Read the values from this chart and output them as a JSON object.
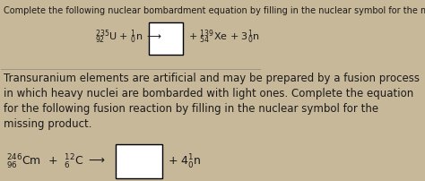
{
  "bg_color": "#c8b89a",
  "title_text": "Complete the following nuclear bombardment equation by filling in the nuclear symbol for the missing species.",
  "title_fontsize": 7,
  "para_fontsize": 8.5,
  "paragraph": "Transuranium elements are artificial and may be prepared by a fusion process\nin which heavy nuclei are bombarded with light ones. Complete the equation\nfor the following fusion reaction by filling in the nuclear symbol for the\nmissing product.",
  "eq_fontsize": 8,
  "box_color": "#ffffff",
  "text_color": "#1a1a1a"
}
